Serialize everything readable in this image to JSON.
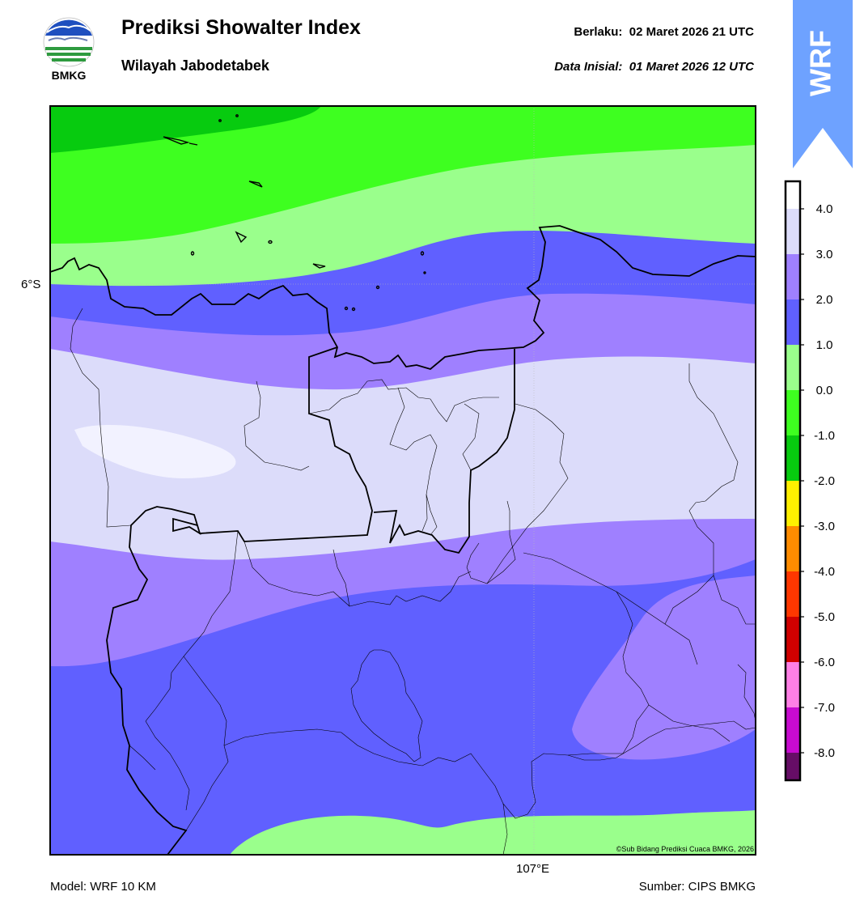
{
  "header": {
    "logo_text": "BMKG",
    "title": "Prediksi Showalter Index",
    "subtitle": "Wilayah Jabodetabek",
    "valid_label": "Berlaku:",
    "valid_time": "02 Maret 2026 21 UTC",
    "init_label": "Data Inisial:",
    "init_time": "01 Maret 2026 12 UTC",
    "badge": "WRF"
  },
  "map": {
    "lat_label": "6°S",
    "lon_label": "107°E",
    "copyright": "©Sub Bidang Prediksi Cuaca BMKG, 2026"
  },
  "footer": {
    "model": "Model: WRF 10 KM",
    "source": "Sumber: CIPS BMKG"
  },
  "legend": {
    "ticks": [
      "4.0",
      "3.0",
      "2.0",
      "1.0",
      "0.0",
      "-1.0",
      "-2.0",
      "-3.0",
      "-4.0",
      "-5.0",
      "-6.0",
      "-7.0",
      "-8.0"
    ],
    "colors": [
      "#ffffff",
      "#dcdcfa",
      "#9f80ff",
      "#6060ff",
      "#9aff8c",
      "#3eff20",
      "#07cb0f",
      "#fff000",
      "#ff8c00",
      "#ff3700",
      "#d00000",
      "#ff7fe6",
      "#c80bd0",
      "#660d66"
    ]
  }
}
